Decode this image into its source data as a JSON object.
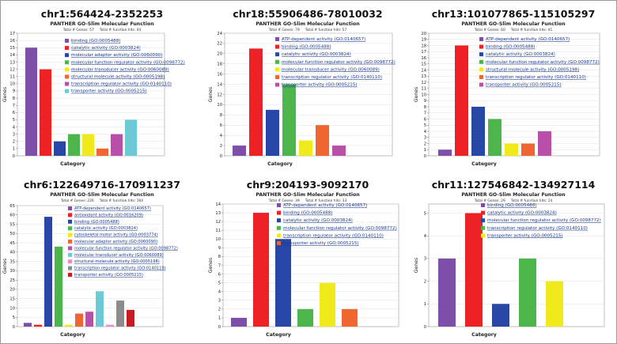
{
  "colors": {
    "purple": "#7e4fa8",
    "red": "#ee2124",
    "blue": "#2846a6",
    "green": "#4cb64c",
    "yellow": "#f0ea1c",
    "orange": "#f06630",
    "magenta": "#b84fa8",
    "cyan": "#6ccad6",
    "pink": "#e58ec6",
    "gray": "#8c8c8c",
    "brown": "#b9704e",
    "darkred": "#c61c22",
    "legend_text": "#1c3a8c"
  },
  "chart_data": [
    {
      "type": "bar",
      "title": "chr1:564424-2352253",
      "subtitle": "PANTHER GO-Slim Molecular Function",
      "totals": "Total # Genes: 57     Total # function hits: 44",
      "xlabel": "Category",
      "ylabel": "Genes",
      "ylim": [
        0,
        17
      ],
      "yticks": [
        "0",
        "1",
        "2",
        "3",
        "4",
        "5",
        "6",
        "7",
        "8",
        "9",
        "10",
        "11",
        "12",
        "13",
        "14",
        "15",
        "16",
        "17"
      ],
      "categories": [
        "binding (GO:0005488)",
        "catalytic activity (GO:0003824)",
        "molecular adaptor activity (GO:0060090)",
        "molecular function regulator activity (GO:0098772)",
        "molecular transducer activity (GO:0060089)",
        "structural molecule activity (GO:0005198)",
        "transcription regulator activity (GO:0140110)",
        "transporter activity (GO:0005215)"
      ],
      "values": [
        15,
        12,
        2,
        3,
        3,
        1,
        3,
        5
      ],
      "colors": [
        "purple",
        "red",
        "blue",
        "green",
        "yellow",
        "orange",
        "magenta",
        "cyan"
      ]
    },
    {
      "type": "bar",
      "title": "chr18:55906486-78010032",
      "subtitle": "PANTHER GO-Slim Molecular Function",
      "totals": "Total # Genes: 79     Total # function hits: 57",
      "xlabel": "Category",
      "ylabel": "Genes",
      "ylim": [
        0,
        24
      ],
      "yticks": [
        "0",
        "2",
        "4",
        "6",
        "8",
        "10",
        "12",
        "14",
        "16",
        "18",
        "20",
        "22",
        "24"
      ],
      "categories": [
        "ATP-dependent activity (GO:0140657)",
        "binding (GO:0005488)",
        "catalytic activity (GO:0003824)",
        "molecular function regulator activity (GO:0098772)",
        "molecular transducer activity (GO:0060089)",
        "transcription regulator activity (GO:0140110)",
        "transporter activity (GO:0005215)"
      ],
      "values": [
        2,
        21,
        9,
        14,
        3,
        6,
        2
      ],
      "colors": [
        "purple",
        "red",
        "blue",
        "green",
        "yellow",
        "orange",
        "magenta"
      ]
    },
    {
      "type": "bar",
      "title": "chr13:101077865-115105297",
      "subtitle": "PANTHER GO-Slim Molecular Function",
      "totals": "Total # Genes: 60     Total # function hits: 41",
      "xlabel": "Category",
      "ylabel": "Genes",
      "ylim": [
        0,
        20
      ],
      "yticks": [
        "0",
        "1",
        "2",
        "3",
        "4",
        "5",
        "6",
        "7",
        "8",
        "9",
        "10",
        "11",
        "12",
        "13",
        "14",
        "15",
        "16",
        "17",
        "18",
        "19",
        "20"
      ],
      "categories": [
        "ATP-dependent activity (GO:0140657)",
        "binding (GO:0005488)",
        "catalytic activity (GO:0003824)",
        "molecular function regulator activity (GO:0098772)",
        "structural molecule activity (GO:0005198)",
        "transcription regulator activity (GO:0140110)",
        "transporter activity (GO:0005215)"
      ],
      "values": [
        1,
        18,
        8,
        6,
        2,
        2,
        4
      ],
      "colors": [
        "purple",
        "red",
        "blue",
        "green",
        "yellow",
        "orange",
        "magenta"
      ]
    },
    {
      "type": "bar",
      "title": "chr6:122649716-170911237",
      "subtitle": "PANTHER GO-Slim Molecular Function",
      "totals": "Total # Genes: 226     Total # function hits: 164",
      "xlabel": "Category",
      "ylabel": "Genes",
      "ylim": [
        0,
        65
      ],
      "yticks": [
        "0",
        "5",
        "10",
        "15",
        "20",
        "25",
        "30",
        "35",
        "40",
        "45",
        "50",
        "55",
        "60",
        "65"
      ],
      "categories": [
        "ATP-dependent activity (GO:0140657)",
        "antioxidant activity (GO:0016209)",
        "binding (GO:0005488)",
        "catalytic activity (GO:0003824)",
        "cytoskeletal motor activity (GO:0003774)",
        "molecular adaptor activity (GO:0060090)",
        "molecular function regulator activity (GO:0098772)",
        "molecular transducer activity (GO:0060089)",
        "structural molecule activity (GO:0005198)",
        "transcription regulator activity (GO:0140110)",
        "transporter activity (GO:0005215)"
      ],
      "values": [
        2,
        1,
        59,
        43,
        1,
        7,
        8,
        19,
        1,
        14,
        9
      ],
      "colors": [
        "purple",
        "red",
        "blue",
        "green",
        "yellow",
        "orange",
        "magenta",
        "cyan",
        "pink",
        "gray",
        "darkred"
      ]
    },
    {
      "type": "bar",
      "title": "chr9:204193-9092170",
      "subtitle": "PANTHER GO-Slim Molecular Function",
      "totals": "Total # Genes: 39     Total # function hits: 33",
      "xlabel": "Category",
      "ylabel": "Genes",
      "ylim": [
        0,
        14
      ],
      "yticks": [
        "0",
        "1",
        "2",
        "3",
        "4",
        "5",
        "6",
        "7",
        "8",
        "9",
        "10",
        "11",
        "12",
        "13",
        "14"
      ],
      "categories": [
        "ATP-dependent activity (GO:0140657)",
        "binding (GO:0005488)",
        "catalytic activity (GO:0003824)",
        "molecular function regulator activity (GO:0098772)",
        "transcription regulator activity (GO:0140110)",
        "transporter activity (GO:0005215)"
      ],
      "values": [
        1,
        13,
        10,
        2,
        5,
        2
      ],
      "colors": [
        "purple",
        "red",
        "blue",
        "green",
        "yellow",
        "orange"
      ]
    },
    {
      "type": "bar",
      "title": "chr11:127546842-134927114",
      "subtitle": "PANTHER GO-Slim Molecular Function",
      "totals": "Total # Genes: 29     Total # function hits: 14",
      "xlabel": "Category",
      "ylabel": "Genes",
      "ylim": [
        0,
        5.4
      ],
      "yticks": [
        "0",
        "1",
        "2",
        "3",
        "4",
        "5"
      ],
      "categories": [
        "binding (GO:0005488)",
        "catalytic activity (GO:0003824)",
        "molecular function regulator activity (GO:0098772)",
        "transcription regulator activity (GO:0140110)",
        "transporter activity (GO:0005215)"
      ],
      "values": [
        3,
        5,
        1,
        3,
        2
      ],
      "colors": [
        "purple",
        "red",
        "blue",
        "green",
        "yellow"
      ]
    }
  ]
}
